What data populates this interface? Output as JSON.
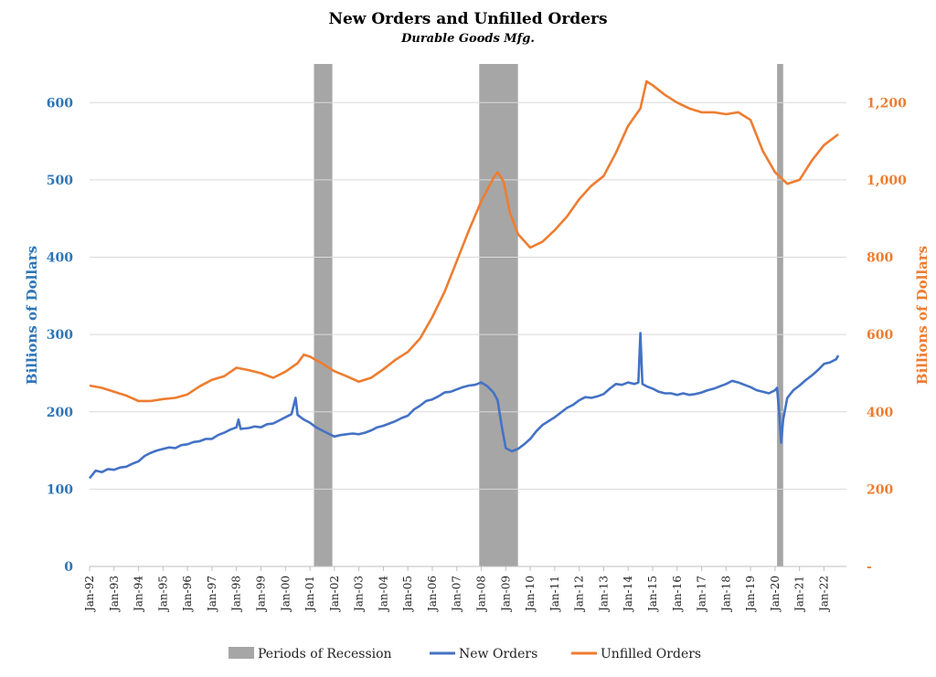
{
  "chart_data": {
    "type": "line",
    "title": "New Orders and Unfilled Orders",
    "subtitle": "Durable Goods Mfg.",
    "y_left": {
      "label": "Billions of Dollars",
      "ticks": [
        "0",
        "100",
        "200",
        "300",
        "400",
        "500",
        "600"
      ],
      "range": [
        0,
        650
      ],
      "color": "#2e75b6"
    },
    "y_right": {
      "label": "Billions of Dollars",
      "ticks": [
        "-",
        "200",
        "400",
        "600",
        "800",
        "1,000",
        "1,200"
      ],
      "range": [
        0,
        1300
      ],
      "color": "#ed7d31"
    },
    "x_ticks": [
      "Jan-92",
      "Jan-93",
      "Jan-94",
      "Jan-95",
      "Jan-96",
      "Jan-97",
      "Jan-98",
      "Jan-99",
      "Jan-00",
      "Jan-01",
      "Jan-02",
      "Jan-03",
      "Jan-04",
      "Jan-05",
      "Jan-06",
      "Jan-07",
      "Jan-08",
      "Jan-09",
      "Jan-10",
      "Jan-11",
      "Jan-12",
      "Jan-13",
      "Jan-14",
      "Jan-15",
      "Jan-16",
      "Jan-17",
      "Jan-18",
      "Jan-19",
      "Jan-20",
      "Jan-21",
      "Jan-22"
    ],
    "x_range": [
      "1992-01",
      "2022-12"
    ],
    "recessions": [
      {
        "start": "2001-03",
        "end": "2001-11"
      },
      {
        "start": "2007-12",
        "end": "2009-06"
      },
      {
        "start": "2020-02",
        "end": "2020-04"
      }
    ],
    "series": [
      {
        "name": "New Orders",
        "axis": "left",
        "color": "#4472c4",
        "points": [
          [
            "1992-01",
            114
          ],
          [
            "1992-04",
            124
          ],
          [
            "1992-07",
            122
          ],
          [
            "1992-10",
            126
          ],
          [
            "1993-01",
            125
          ],
          [
            "1993-04",
            128
          ],
          [
            "1993-07",
            129
          ],
          [
            "1993-10",
            133
          ],
          [
            "1994-01",
            136
          ],
          [
            "1994-04",
            143
          ],
          [
            "1994-07",
            147
          ],
          [
            "1994-10",
            150
          ],
          [
            "1995-01",
            152
          ],
          [
            "1995-04",
            154
          ],
          [
            "1995-07",
            153
          ],
          [
            "1995-10",
            157
          ],
          [
            "1996-01",
            158
          ],
          [
            "1996-04",
            161
          ],
          [
            "1996-07",
            162
          ],
          [
            "1996-10",
            165
          ],
          [
            "1997-01",
            165
          ],
          [
            "1997-04",
            170
          ],
          [
            "1997-07",
            173
          ],
          [
            "1997-10",
            177
          ],
          [
            "1998-01",
            180
          ],
          [
            "1998-02",
            190
          ],
          [
            "1998-03",
            178
          ],
          [
            "1998-07",
            179
          ],
          [
            "1998-10",
            181
          ],
          [
            "1999-01",
            180
          ],
          [
            "1999-04",
            184
          ],
          [
            "1999-07",
            185
          ],
          [
            "1999-10",
            189
          ],
          [
            "2000-01",
            193
          ],
          [
            "2000-04",
            197
          ],
          [
            "2000-06",
            218
          ],
          [
            "2000-07",
            196
          ],
          [
            "2000-10",
            190
          ],
          [
            "2001-01",
            186
          ],
          [
            "2001-04",
            180
          ],
          [
            "2001-07",
            176
          ],
          [
            "2001-10",
            172
          ],
          [
            "2002-01",
            168
          ],
          [
            "2002-04",
            170
          ],
          [
            "2002-07",
            171
          ],
          [
            "2002-10",
            172
          ],
          [
            "2003-01",
            171
          ],
          [
            "2003-04",
            173
          ],
          [
            "2003-07",
            176
          ],
          [
            "2003-10",
            180
          ],
          [
            "2004-01",
            182
          ],
          [
            "2004-04",
            185
          ],
          [
            "2004-07",
            188
          ],
          [
            "2004-10",
            192
          ],
          [
            "2005-01",
            195
          ],
          [
            "2005-04",
            203
          ],
          [
            "2005-07",
            208
          ],
          [
            "2005-10",
            214
          ],
          [
            "2006-01",
            216
          ],
          [
            "2006-04",
            220
          ],
          [
            "2006-07",
            225
          ],
          [
            "2006-10",
            226
          ],
          [
            "2007-01",
            229
          ],
          [
            "2007-04",
            232
          ],
          [
            "2007-07",
            234
          ],
          [
            "2007-10",
            235
          ],
          [
            "2008-01",
            238
          ],
          [
            "2008-04",
            233
          ],
          [
            "2008-07",
            225
          ],
          [
            "2008-09",
            215
          ],
          [
            "2008-11",
            182
          ],
          [
            "2009-01",
            153
          ],
          [
            "2009-04",
            149
          ],
          [
            "2009-07",
            152
          ],
          [
            "2009-10",
            158
          ],
          [
            "2010-01",
            165
          ],
          [
            "2010-04",
            175
          ],
          [
            "2010-07",
            183
          ],
          [
            "2010-10",
            188
          ],
          [
            "2011-01",
            193
          ],
          [
            "2011-04",
            199
          ],
          [
            "2011-07",
            205
          ],
          [
            "2011-10",
            209
          ],
          [
            "2012-01",
            215
          ],
          [
            "2012-04",
            219
          ],
          [
            "2012-07",
            218
          ],
          [
            "2012-10",
            220
          ],
          [
            "2013-01",
            223
          ],
          [
            "2013-04",
            230
          ],
          [
            "2013-07",
            236
          ],
          [
            "2013-10",
            235
          ],
          [
            "2014-01",
            238
          ],
          [
            "2014-04",
            236
          ],
          [
            "2014-06",
            238
          ],
          [
            "2014-07",
            302
          ],
          [
            "2014-08",
            236
          ],
          [
            "2014-10",
            233
          ],
          [
            "2015-01",
            230
          ],
          [
            "2015-04",
            226
          ],
          [
            "2015-07",
            224
          ],
          [
            "2015-10",
            224
          ],
          [
            "2016-01",
            222
          ],
          [
            "2016-04",
            224
          ],
          [
            "2016-07",
            222
          ],
          [
            "2016-10",
            223
          ],
          [
            "2017-01",
            225
          ],
          [
            "2017-04",
            228
          ],
          [
            "2017-07",
            230
          ],
          [
            "2017-10",
            233
          ],
          [
            "2018-01",
            236
          ],
          [
            "2018-04",
            240
          ],
          [
            "2018-07",
            238
          ],
          [
            "2018-10",
            235
          ],
          [
            "2019-01",
            232
          ],
          [
            "2019-04",
            228
          ],
          [
            "2019-07",
            226
          ],
          [
            "2019-10",
            224
          ],
          [
            "2020-01",
            228
          ],
          [
            "2020-02",
            231
          ],
          [
            "2020-03",
            200
          ],
          [
            "2020-04",
            160
          ],
          [
            "2020-05",
            190
          ],
          [
            "2020-07",
            218
          ],
          [
            "2020-10",
            228
          ],
          [
            "2021-01",
            234
          ],
          [
            "2021-04",
            241
          ],
          [
            "2021-07",
            247
          ],
          [
            "2021-10",
            254
          ],
          [
            "2022-01",
            262
          ],
          [
            "2022-04",
            264
          ],
          [
            "2022-07",
            268
          ],
          [
            "2022-08",
            273
          ]
        ]
      },
      {
        "name": "Unfilled Orders",
        "axis": "right",
        "color": "#ed7d31",
        "points": [
          [
            "1992-01",
            468
          ],
          [
            "1992-07",
            462
          ],
          [
            "1993-01",
            452
          ],
          [
            "1993-07",
            442
          ],
          [
            "1994-01",
            428
          ],
          [
            "1994-07",
            428
          ],
          [
            "1995-01",
            433
          ],
          [
            "1995-07",
            436
          ],
          [
            "1996-01",
            445
          ],
          [
            "1996-07",
            466
          ],
          [
            "1997-01",
            483
          ],
          [
            "1997-07",
            492
          ],
          [
            "1998-01",
            514
          ],
          [
            "1998-07",
            508
          ],
          [
            "1999-01",
            500
          ],
          [
            "1999-07",
            488
          ],
          [
            "2000-01",
            504
          ],
          [
            "2000-07",
            526
          ],
          [
            "2000-10",
            548
          ],
          [
            "2001-01",
            543
          ],
          [
            "2001-07",
            525
          ],
          [
            "2002-01",
            505
          ],
          [
            "2002-07",
            492
          ],
          [
            "2003-01",
            478
          ],
          [
            "2003-07",
            488
          ],
          [
            "2004-01",
            510
          ],
          [
            "2004-07",
            535
          ],
          [
            "2005-01",
            555
          ],
          [
            "2005-07",
            590
          ],
          [
            "2006-01",
            645
          ],
          [
            "2006-07",
            710
          ],
          [
            "2007-01",
            790
          ],
          [
            "2007-07",
            870
          ],
          [
            "2008-01",
            945
          ],
          [
            "2008-07",
            1005
          ],
          [
            "2008-09",
            1020
          ],
          [
            "2008-12",
            995
          ],
          [
            "2009-03",
            915
          ],
          [
            "2009-07",
            860
          ],
          [
            "2010-01",
            825
          ],
          [
            "2010-07",
            840
          ],
          [
            "2011-01",
            870
          ],
          [
            "2011-07",
            905
          ],
          [
            "2012-01",
            950
          ],
          [
            "2012-07",
            985
          ],
          [
            "2013-01",
            1010
          ],
          [
            "2013-07",
            1070
          ],
          [
            "2014-01",
            1140
          ],
          [
            "2014-07",
            1185
          ],
          [
            "2014-10",
            1255
          ],
          [
            "2015-01",
            1245
          ],
          [
            "2015-07",
            1220
          ],
          [
            "2016-01",
            1200
          ],
          [
            "2016-07",
            1185
          ],
          [
            "2017-01",
            1175
          ],
          [
            "2017-07",
            1175
          ],
          [
            "2018-01",
            1170
          ],
          [
            "2018-07",
            1175
          ],
          [
            "2019-01",
            1155
          ],
          [
            "2019-07",
            1075
          ],
          [
            "2020-01",
            1020
          ],
          [
            "2020-07",
            990
          ],
          [
            "2021-01",
            1000
          ],
          [
            "2021-07",
            1050
          ],
          [
            "2022-01",
            1090
          ],
          [
            "2022-08",
            1118
          ]
        ]
      }
    ],
    "legend": {
      "position": "bottom",
      "items": [
        {
          "label": "Periods of Recession",
          "kind": "box",
          "color": "#a6a6a6"
        },
        {
          "label": "New Orders",
          "kind": "line",
          "color": "#4472c4"
        },
        {
          "label": "Unfilled Orders",
          "kind": "line",
          "color": "#ed7d31"
        }
      ]
    },
    "grid": true,
    "recession_color": "#a6a6a6",
    "grid_color": "#d9d9d9"
  }
}
